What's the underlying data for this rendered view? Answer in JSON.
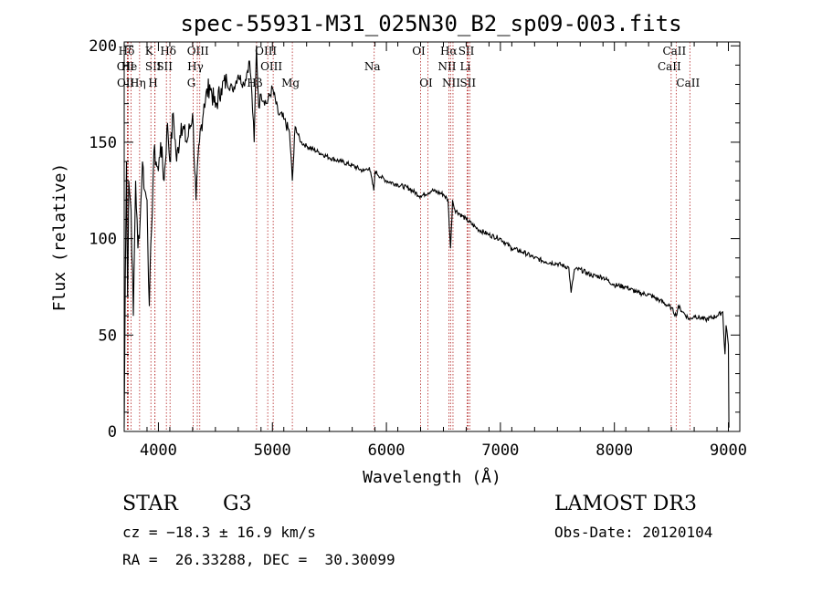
{
  "chart_data": {
    "type": "line",
    "title": "spec-55931-M31_025N30_B2_sp09-003.fits",
    "xlabel": "Wavelength (Å)",
    "ylabel": "Flux (relative)",
    "xlim": [
      3700,
      9100
    ],
    "ylim": [
      0,
      202
    ],
    "xticks": [
      4000,
      5000,
      6000,
      7000,
      8000,
      9000
    ],
    "yticks": [
      0,
      50,
      100,
      150,
      200
    ],
    "grid": false,
    "series": [
      {
        "name": "spectrum",
        "color": "#000000",
        "x": [
          3700,
          3710,
          3720,
          3730,
          3740,
          3760,
          3780,
          3800,
          3820,
          3840,
          3860,
          3880,
          3900,
          3920,
          3940,
          3960,
          3980,
          4000,
          4020,
          4050,
          4080,
          4100,
          4130,
          4160,
          4200,
          4250,
          4300,
          4330,
          4360,
          4400,
          4450,
          4500,
          4550,
          4600,
          4650,
          4700,
          4750,
          4800,
          4820,
          4840,
          4860,
          4880,
          4900,
          4950,
          5000,
          5050,
          5100,
          5150,
          5175,
          5200,
          5250,
          5300,
          5400,
          5500,
          5600,
          5700,
          5800,
          5850,
          5890,
          5900,
          5950,
          6000,
          6100,
          6200,
          6300,
          6400,
          6500,
          6540,
          6563,
          6580,
          6600,
          6700,
          6800,
          6900,
          7000,
          7100,
          7200,
          7300,
          7400,
          7500,
          7600,
          7620,
          7650,
          7700,
          7800,
          7900,
          8000,
          8100,
          8200,
          8300,
          8400,
          8500,
          8542,
          8560,
          8600,
          8662,
          8700,
          8800,
          8900,
          8950,
          8970,
          8980,
          9000,
          9005
        ],
        "values": [
          2,
          80,
          140,
          70,
          130,
          115,
          60,
          130,
          95,
          110,
          140,
          125,
          120,
          65,
          105,
          145,
          140,
          135,
          150,
          130,
          160,
          140,
          165,
          140,
          160,
          150,
          165,
          120,
          150,
          170,
          180,
          168,
          178,
          182,
          177,
          185,
          180,
          192,
          175,
          150,
          200,
          168,
          175,
          170,
          178,
          165,
          162,
          155,
          130,
          158,
          150,
          148,
          145,
          142,
          140,
          138,
          135,
          137,
          125,
          135,
          132,
          130,
          128,
          126,
          122,
          125,
          123,
          120,
          95,
          120,
          115,
          110,
          105,
          102,
          100,
          95,
          93,
          90,
          88,
          87,
          85,
          72,
          84,
          84,
          81,
          80,
          76,
          75,
          72,
          71,
          68,
          64,
          60,
          65,
          62,
          58,
          60,
          58,
          60,
          62,
          40,
          55,
          45,
          2
        ]
      }
    ],
    "line_markers": [
      {
        "label": "Hδ",
        "x": 3736,
        "row": 0
      },
      {
        "label": "OII",
        "x": 3727,
        "row": 1
      },
      {
        "label": "OII",
        "x": 3729,
        "row": 2
      },
      {
        "label": "He",
        "x": 3760,
        "row": 1
      },
      {
        "label": "Hη",
        "x": 3835,
        "row": 2
      },
      {
        "label": "K",
        "x": 3934,
        "row": 0
      },
      {
        "label": "SII",
        "x": 3970,
        "row": 1
      },
      {
        "label": "H",
        "x": 3969,
        "row": 2
      },
      {
        "label": "Hδ",
        "x": 4102,
        "row": 0
      },
      {
        "label": "SII",
        "x": 4070,
        "row": 1
      },
      {
        "label": "OIII",
        "x": 4363,
        "row": 0
      },
      {
        "label": "Hγ",
        "x": 4341,
        "row": 1
      },
      {
        "label": "G",
        "x": 4305,
        "row": 2
      },
      {
        "label": "OIII",
        "x": 4959,
        "row": 0
      },
      {
        "label": "OIII",
        "x": 5007,
        "row": 1
      },
      {
        "label": "Hβ",
        "x": 4861,
        "row": 2
      },
      {
        "label": "Mg",
        "x": 5175,
        "row": 2
      },
      {
        "label": "Na",
        "x": 5893,
        "row": 1
      },
      {
        "label": "OI",
        "x": 6300,
        "row": 0
      },
      {
        "label": "OI",
        "x": 6364,
        "row": 2
      },
      {
        "label": "Hα",
        "x": 6563,
        "row": 0
      },
      {
        "label": "NII",
        "x": 6548,
        "row": 1
      },
      {
        "label": "NII",
        "x": 6584,
        "row": 2
      },
      {
        "label": "SII",
        "x": 6717,
        "row": 0
      },
      {
        "label": "Li",
        "x": 6708,
        "row": 1
      },
      {
        "label": "SII",
        "x": 6731,
        "row": 2
      },
      {
        "label": "CaII",
        "x": 8542,
        "row": 0
      },
      {
        "label": "CaII",
        "x": 8498,
        "row": 1
      },
      {
        "label": "CaII",
        "x": 8662,
        "row": 2
      }
    ]
  },
  "info": {
    "object_type": "STAR",
    "subclass": "G3",
    "survey": "LAMOST DR3",
    "cz": "cz = −18.3 ± 16.9 km/s",
    "obs_date": "Obs-Date: 20120104",
    "coords": "RA =  26.33288, DEC =  30.30099"
  }
}
